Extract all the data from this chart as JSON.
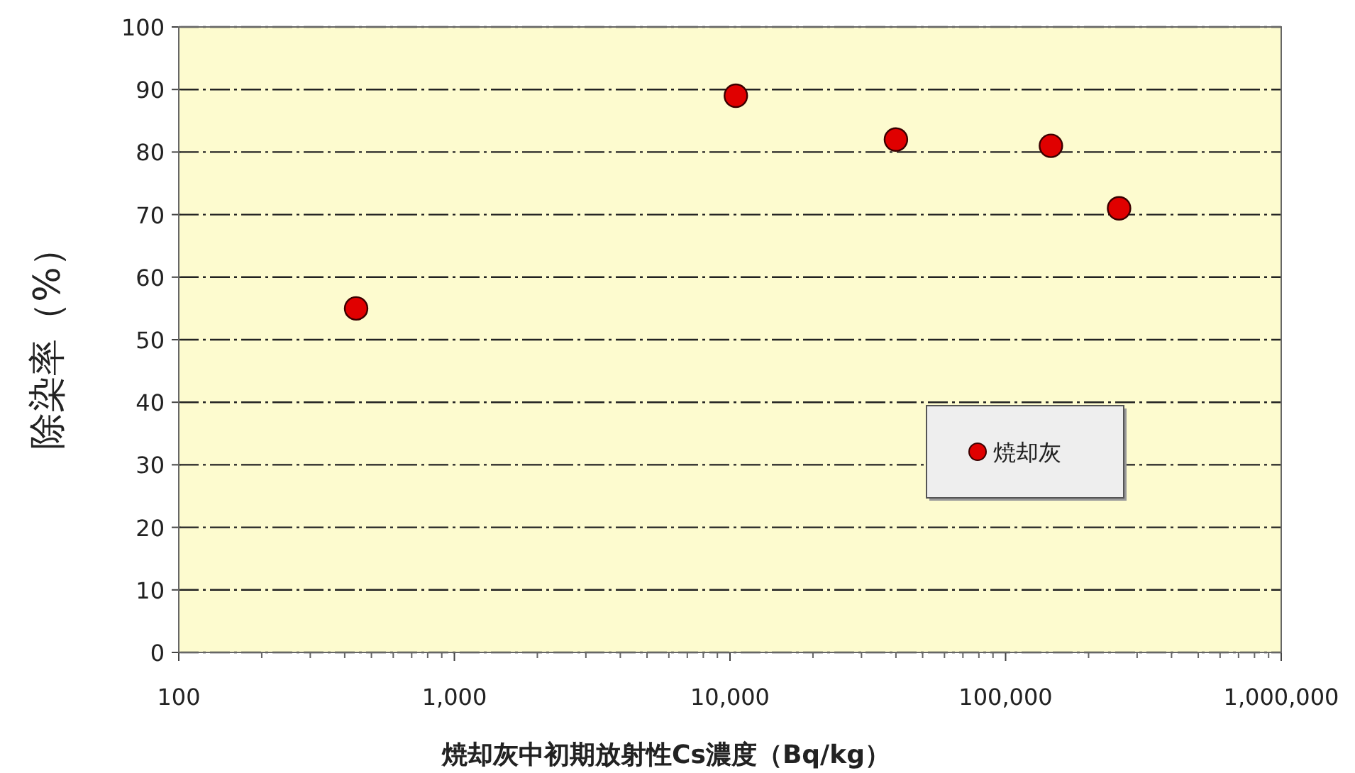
{
  "chart_data": {
    "type": "scatter",
    "xlabel": "焼却灰中初期放射性Cs濃度（Bq/kg）",
    "ylabel": "除染率（%）",
    "log": "x",
    "grid": "y",
    "legend": "bottom right",
    "marker": "circle",
    "xlim": [
      100,
      1000000
    ],
    "xticks": [
      100,
      {
        "value": 1000,
        "label": "1,000"
      },
      {
        "value": 10000,
        "label": "10,000"
      },
      {
        "value": 100000,
        "label": "100,000"
      },
      {
        "value": 1000000,
        "label": "1,000,000"
      }
    ],
    "ylim": [
      0,
      100
    ],
    "yticks": [
      0,
      10,
      20,
      30,
      40,
      50,
      60,
      70,
      80,
      90,
      100
    ],
    "series": [
      {
        "name": "焼却灰",
        "color": "#e00000",
        "x": [
          440,
          10500,
          40000,
          146000,
          258000
        ],
        "values": [
          55,
          89,
          82,
          81,
          71
        ]
      }
    ]
  }
}
